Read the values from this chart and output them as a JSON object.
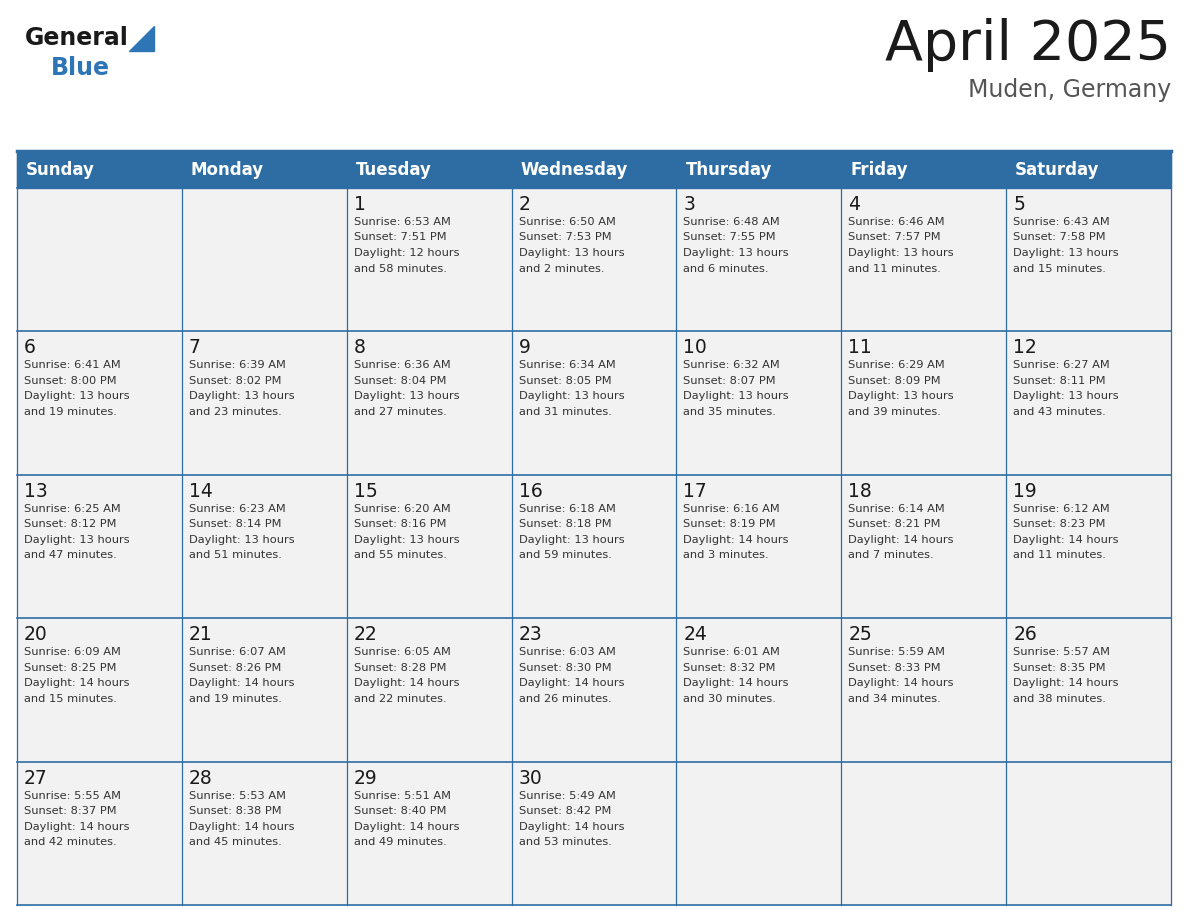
{
  "title": "April 2025",
  "subtitle": "Muden, Germany",
  "header_bg": "#2E6DA4",
  "header_text_color": "#FFFFFF",
  "cell_bg": "#F2F2F2",
  "day_names": [
    "Sunday",
    "Monday",
    "Tuesday",
    "Wednesday",
    "Thursday",
    "Friday",
    "Saturday"
  ],
  "grid_color": "#2E6DA4",
  "grid_line_color": "#B0C4D8",
  "date_color": "#1a1a1a",
  "info_color": "#333333",
  "title_color": "#1a1a1a",
  "subtitle_color": "#555555",
  "logo_general_color": "#1a1a1a",
  "logo_blue_color": "#2E75B6",
  "triangle_color": "#2E75B6",
  "weeks": [
    [
      {
        "date": "",
        "sunrise": "",
        "sunset": "",
        "daylight": ""
      },
      {
        "date": "",
        "sunrise": "",
        "sunset": "",
        "daylight": ""
      },
      {
        "date": "1",
        "sunrise": "6:53 AM",
        "sunset": "7:51 PM",
        "daylight": "12 hours and 58 minutes."
      },
      {
        "date": "2",
        "sunrise": "6:50 AM",
        "sunset": "7:53 PM",
        "daylight": "13 hours and 2 minutes."
      },
      {
        "date": "3",
        "sunrise": "6:48 AM",
        "sunset": "7:55 PM",
        "daylight": "13 hours and 6 minutes."
      },
      {
        "date": "4",
        "sunrise": "6:46 AM",
        "sunset": "7:57 PM",
        "daylight": "13 hours and 11 minutes."
      },
      {
        "date": "5",
        "sunrise": "6:43 AM",
        "sunset": "7:58 PM",
        "daylight": "13 hours and 15 minutes."
      }
    ],
    [
      {
        "date": "6",
        "sunrise": "6:41 AM",
        "sunset": "8:00 PM",
        "daylight": "13 hours and 19 minutes."
      },
      {
        "date": "7",
        "sunrise": "6:39 AM",
        "sunset": "8:02 PM",
        "daylight": "13 hours and 23 minutes."
      },
      {
        "date": "8",
        "sunrise": "6:36 AM",
        "sunset": "8:04 PM",
        "daylight": "13 hours and 27 minutes."
      },
      {
        "date": "9",
        "sunrise": "6:34 AM",
        "sunset": "8:05 PM",
        "daylight": "13 hours and 31 minutes."
      },
      {
        "date": "10",
        "sunrise": "6:32 AM",
        "sunset": "8:07 PM",
        "daylight": "13 hours and 35 minutes."
      },
      {
        "date": "11",
        "sunrise": "6:29 AM",
        "sunset": "8:09 PM",
        "daylight": "13 hours and 39 minutes."
      },
      {
        "date": "12",
        "sunrise": "6:27 AM",
        "sunset": "8:11 PM",
        "daylight": "13 hours and 43 minutes."
      }
    ],
    [
      {
        "date": "13",
        "sunrise": "6:25 AM",
        "sunset": "8:12 PM",
        "daylight": "13 hours and 47 minutes."
      },
      {
        "date": "14",
        "sunrise": "6:23 AM",
        "sunset": "8:14 PM",
        "daylight": "13 hours and 51 minutes."
      },
      {
        "date": "15",
        "sunrise": "6:20 AM",
        "sunset": "8:16 PM",
        "daylight": "13 hours and 55 minutes."
      },
      {
        "date": "16",
        "sunrise": "6:18 AM",
        "sunset": "8:18 PM",
        "daylight": "13 hours and 59 minutes."
      },
      {
        "date": "17",
        "sunrise": "6:16 AM",
        "sunset": "8:19 PM",
        "daylight": "14 hours and 3 minutes."
      },
      {
        "date": "18",
        "sunrise": "6:14 AM",
        "sunset": "8:21 PM",
        "daylight": "14 hours and 7 minutes."
      },
      {
        "date": "19",
        "sunrise": "6:12 AM",
        "sunset": "8:23 PM",
        "daylight": "14 hours and 11 minutes."
      }
    ],
    [
      {
        "date": "20",
        "sunrise": "6:09 AM",
        "sunset": "8:25 PM",
        "daylight": "14 hours and 15 minutes."
      },
      {
        "date": "21",
        "sunrise": "6:07 AM",
        "sunset": "8:26 PM",
        "daylight": "14 hours and 19 minutes."
      },
      {
        "date": "22",
        "sunrise": "6:05 AM",
        "sunset": "8:28 PM",
        "daylight": "14 hours and 22 minutes."
      },
      {
        "date": "23",
        "sunrise": "6:03 AM",
        "sunset": "8:30 PM",
        "daylight": "14 hours and 26 minutes."
      },
      {
        "date": "24",
        "sunrise": "6:01 AM",
        "sunset": "8:32 PM",
        "daylight": "14 hours and 30 minutes."
      },
      {
        "date": "25",
        "sunrise": "5:59 AM",
        "sunset": "8:33 PM",
        "daylight": "14 hours and 34 minutes."
      },
      {
        "date": "26",
        "sunrise": "5:57 AM",
        "sunset": "8:35 PM",
        "daylight": "14 hours and 38 minutes."
      }
    ],
    [
      {
        "date": "27",
        "sunrise": "5:55 AM",
        "sunset": "8:37 PM",
        "daylight": "14 hours and 42 minutes."
      },
      {
        "date": "28",
        "sunrise": "5:53 AM",
        "sunset": "8:38 PM",
        "daylight": "14 hours and 45 minutes."
      },
      {
        "date": "29",
        "sunrise": "5:51 AM",
        "sunset": "8:40 PM",
        "daylight": "14 hours and 49 minutes."
      },
      {
        "date": "30",
        "sunrise": "5:49 AM",
        "sunset": "8:42 PM",
        "daylight": "14 hours and 53 minutes."
      },
      {
        "date": "",
        "sunrise": "",
        "sunset": "",
        "daylight": ""
      },
      {
        "date": "",
        "sunrise": "",
        "sunset": "",
        "daylight": ""
      },
      {
        "date": "",
        "sunrise": "",
        "sunset": "",
        "daylight": ""
      }
    ]
  ]
}
